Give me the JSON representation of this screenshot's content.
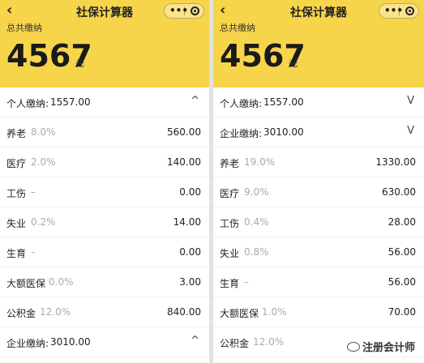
{
  "left": {
    "title": "社保计算器",
    "total_label": "总共缴纳",
    "total_amount": "4567",
    "unit": "元",
    "personal_label": "个人缴纳:",
    "personal_value": "1557.00",
    "personal_chevron": "^",
    "items": [
      {
        "label": "养老",
        "rate": "8.0%",
        "value": "560.00"
      },
      {
        "label": "医疗",
        "rate": "2.0%",
        "value": "140.00"
      },
      {
        "label": "工伤",
        "rate": "–",
        "value": "0.00"
      },
      {
        "label": "失业",
        "rate": "0.2%",
        "value": "14.00"
      },
      {
        "label": "生育",
        "rate": "–",
        "value": "0.00"
      },
      {
        "label": "大额医保",
        "rate": "0.0%",
        "value": "3.00"
      },
      {
        "label": "公积金",
        "rate": "12.0%",
        "value": "840.00"
      }
    ],
    "company_label": "企业缴纳:",
    "company_value": "3010.00",
    "company_chevron": "^"
  },
  "right": {
    "title": "社保计算器",
    "total_label": "总共缴纳",
    "total_amount": "4567",
    "unit": "元",
    "personal_label": "个人缴纳:",
    "personal_value": "1557.00",
    "personal_chevron": "V",
    "company_label": "企业缴纳:",
    "company_value": "3010.00",
    "company_chevron": "V",
    "items": [
      {
        "label": "养老",
        "rate": "19.0%",
        "value": "1330.00"
      },
      {
        "label": "医疗",
        "rate": "9.0%",
        "value": "630.00"
      },
      {
        "label": "工伤",
        "rate": "0.4%",
        "value": "28.00"
      },
      {
        "label": "失业",
        "rate": "0.8%",
        "value": "56.00"
      },
      {
        "label": "生育",
        "rate": "–",
        "value": "56.00"
      },
      {
        "label": "大额医保",
        "rate": "1.0%",
        "value": "70.00"
      },
      {
        "label": "公积金",
        "rate": "12.0%",
        "value": ""
      }
    ],
    "watermark": "注册会计师"
  },
  "icons": {
    "back": "back-arrow-icon",
    "more": "more-dots-icon",
    "close": "close-target-icon",
    "watermark": "wechat-icon"
  },
  "colors": {
    "header": "#f7d54a",
    "rate": "#aaaaaa"
  }
}
